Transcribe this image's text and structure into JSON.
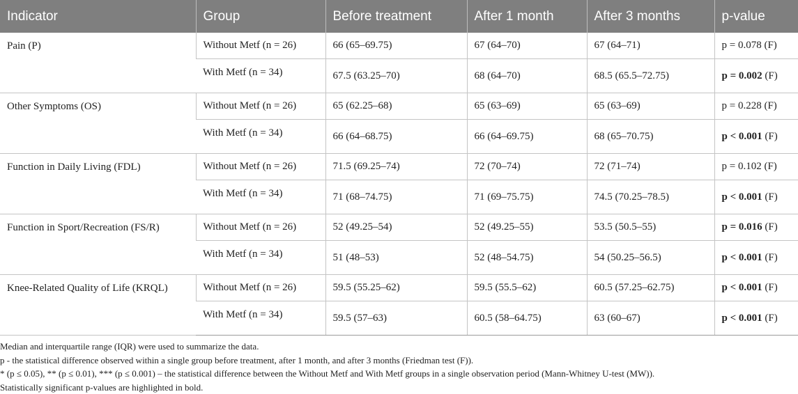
{
  "headers": [
    "Indicator",
    "Group",
    "Before treatment",
    "After 1 month",
    "After 3 months",
    "p-value"
  ],
  "indicators": [
    {
      "name": "Pain (P)",
      "rows": [
        {
          "group": "Without Metf (n = 26)",
          "before": "66 (65–69.75)",
          "m1": "67 (64–70)",
          "m3": "67 (64–71)",
          "p": "p = 0.078",
          "p_bold": false,
          "test": " (F)"
        },
        {
          "group": "With Metf (n = 34)",
          "before": "67.5 (63.25–70)",
          "m1": "68 (64–70)",
          "m3": "68.5 (65.5–72.75)",
          "p": "p = 0.002",
          "p_bold": true,
          "test": " (F)"
        }
      ]
    },
    {
      "name": "Other Symptoms (OS)",
      "rows": [
        {
          "group": "Without Metf (n = 26)",
          "before": "65 (62.25–68)",
          "m1": "65 (63–69)",
          "m3": "65 (63–69)",
          "p": "p = 0.228",
          "p_bold": false,
          "test": " (F)"
        },
        {
          "group": "With Metf (n = 34)",
          "before": "66 (64–68.75)",
          "m1": "66 (64–69.75)",
          "m3": "68 (65–70.75)",
          "p": "p < 0.001",
          "p_bold": true,
          "test": " (F)"
        }
      ]
    },
    {
      "name": "Function in Daily Living (FDL)",
      "rows": [
        {
          "group": "Without Metf (n = 26)",
          "before": "71.5 (69.25–74)",
          "m1": "72 (70–74)",
          "m3": "72 (71–74)",
          "p": "p = 0.102",
          "p_bold": false,
          "test": " (F)"
        },
        {
          "group": "With Metf (n = 34)",
          "before": "71 (68–74.75)",
          "m1": "71 (69–75.75)",
          "m3": "74.5 (70.25–78.5)",
          "p": "p < 0.001",
          "p_bold": true,
          "test": " (F)"
        }
      ]
    },
    {
      "name": "Function in Sport/Recreation (FS/R)",
      "rows": [
        {
          "group": "Without Metf (n = 26)",
          "before": "52 (49.25–54)",
          "m1": "52 (49.25–55)",
          "m3": "53.5 (50.5–55)",
          "p": "p = 0.016",
          "p_bold": true,
          "test": " (F)"
        },
        {
          "group": "With Metf (n = 34)",
          "before": "51 (48–53)",
          "m1": "52 (48–54.75)",
          "m3": "54 (50.25–56.5)",
          "p": "p < 0.001",
          "p_bold": true,
          "test": " (F)"
        }
      ]
    },
    {
      "name": "Knee-Related Quality of Life (KRQL)",
      "rows": [
        {
          "group": "Without Metf (n = 26)",
          "before": "59.5 (55.25–62)",
          "m1": "59.5 (55.5–62)",
          "m3": "60.5 (57.25–62.75)",
          "p": "p < 0.001",
          "p_bold": true,
          "test": " (F)"
        },
        {
          "group": "With Metf (n = 34)",
          "before": "59.5 (57–63)",
          "m1": "60.5 (58–64.75)",
          "m3": "63 (60–67)",
          "p": "p < 0.001",
          "p_bold": true,
          "test": " (F)"
        }
      ]
    }
  ],
  "footnotes": [
    "Median and interquartile range (IQR) were used to summarize the data.",
    "p - the statistical difference observed within a single group before treatment, after 1 month, and after 3 months (Friedman test (F)).",
    "* (p ≤ 0.05), ** (p ≤ 0.01), *** (p ≤ 0.001) – the statistical difference between the Without Metf and With Metf groups in a single observation period (Mann-Whitney U-test (MW)).",
    "Statistically significant p-values are highlighted in bold."
  ],
  "colors": {
    "header_bg": "#7f7f7f",
    "header_text": "#ffffff",
    "border": "#c4c4c4"
  }
}
